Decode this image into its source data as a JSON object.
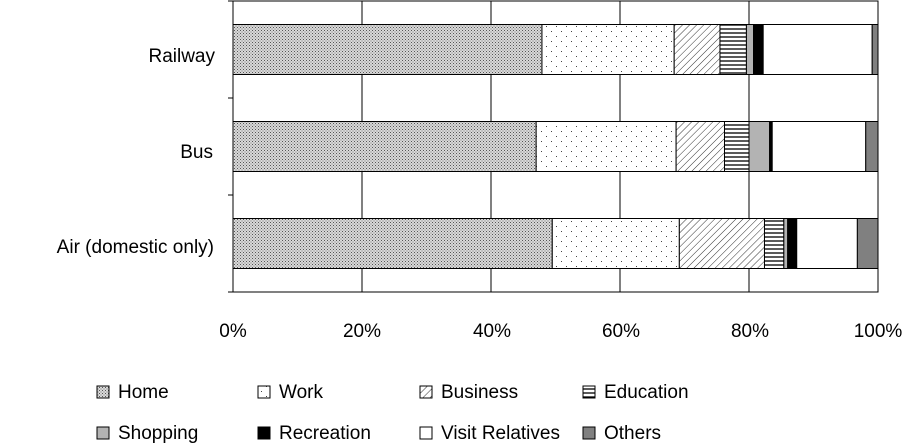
{
  "chart_data": {
    "type": "bar",
    "orientation": "horizontal",
    "stacked": true,
    "percent": true,
    "categories": [
      "Railway",
      "Bus",
      "Air (domestic only)"
    ],
    "series": [
      {
        "name": "Home",
        "pattern": "dots-dense",
        "values": [
          47.9,
          47.0,
          49.5
        ]
      },
      {
        "name": "Work",
        "pattern": "dots-sparse",
        "values": [
          20.5,
          21.7,
          19.7
        ]
      },
      {
        "name": "Business",
        "pattern": "diagonal",
        "values": [
          7.1,
          7.5,
          13.2
        ]
      },
      {
        "name": "Education",
        "pattern": "horizontal",
        "values": [
          4.1,
          3.8,
          3.0
        ]
      },
      {
        "name": "Shopping",
        "pattern": "gray-light",
        "values": [
          1.1,
          3.2,
          0.6
        ]
      },
      {
        "name": "Recreation",
        "pattern": "black",
        "values": [
          1.5,
          0.4,
          1.4
        ]
      },
      {
        "name": "Visit Relatives",
        "pattern": "white",
        "values": [
          16.9,
          14.5,
          9.4
        ]
      },
      {
        "name": "Others",
        "pattern": "gray-dark",
        "values": [
          0.9,
          1.9,
          3.2
        ]
      }
    ],
    "xlim": [
      0,
      100
    ],
    "x_ticks": [
      "0%",
      "20%",
      "40%",
      "60%",
      "80%",
      "100%"
    ],
    "grid": "vertical",
    "legend_position": "bottom",
    "legend_rows": [
      [
        "Home",
        "Work",
        "Business",
        "Education"
      ],
      [
        "Shopping",
        "Recreation",
        "Visit Relatives",
        "Others"
      ]
    ]
  }
}
